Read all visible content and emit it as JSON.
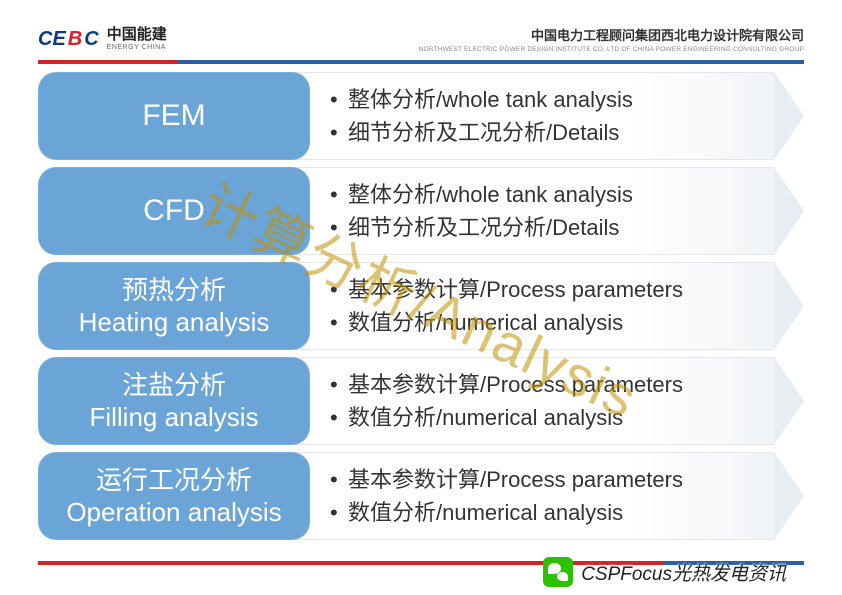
{
  "header": {
    "logo_mark_blue": "CE",
    "logo_mark_red": "B",
    "logo_mark_blue2": "C",
    "logo_cn": "中国能建",
    "logo_en": "ENERGY CHINA",
    "company_cn": "中国电力工程顾问集团西北电力设计院有限公司",
    "company_en": "NORTHWEST ELECTRIC POWER DESIGN INSTITUTE CO.,LTD.OF CHINA POWER ENGINEERING CONSULTING GROUP"
  },
  "colors": {
    "tab_bg": "#6ba5d7",
    "tab_text": "#ffffff",
    "rule_red": "#d6232a",
    "rule_blue": "#2a5fa4",
    "body_text": "#333333",
    "watermark": "rgba(191,144,0,0.55)"
  },
  "watermark": "计算分析/Analysis",
  "rows": [
    {
      "title_cn": "",
      "title_en": "FEM",
      "single": true,
      "bullets": [
        "整体分析/whole tank analysis",
        "细节分析及工况分析/Details"
      ]
    },
    {
      "title_cn": "",
      "title_en": "CFD",
      "single": true,
      "bullets": [
        "整体分析/whole tank analysis",
        "细节分析及工况分析/Details"
      ]
    },
    {
      "title_cn": "预热分析",
      "title_en": "Heating analysis",
      "single": false,
      "bullets": [
        "基本参数计算/Process parameters",
        "数值分析/numerical analysis"
      ]
    },
    {
      "title_cn": "注盐分析",
      "title_en": "Filling analysis",
      "single": false,
      "bullets": [
        "基本参数计算/Process parameters",
        "数值分析/numerical analysis"
      ]
    },
    {
      "title_cn": "运行工况分析",
      "title_en": "Operation analysis",
      "single": false,
      "bullets": [
        "基本参数计算/Process parameters",
        "数值分析/numerical analysis"
      ]
    }
  ],
  "wechat": {
    "label": "CSPFocus光热发电资讯"
  }
}
